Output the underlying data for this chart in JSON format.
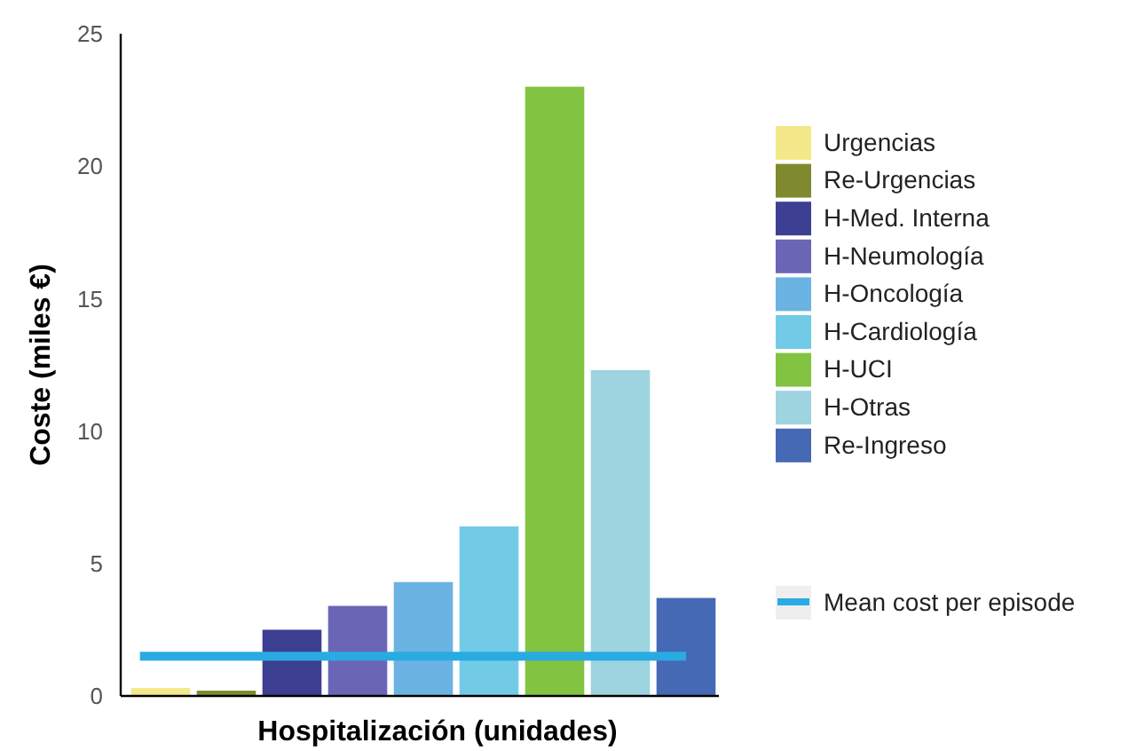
{
  "chart_data": {
    "type": "bar",
    "xlabel": "Hospitalización (unidades)",
    "ylabel": "Coste (miles €)",
    "categories": [
      null,
      null,
      null,
      null,
      null,
      null,
      null,
      null,
      null
    ],
    "stacked": true,
    "series": [
      {
        "name": "Urgencias",
        "color": "#f3e88a",
        "values": [
          0.3,
          null,
          null,
          null,
          null,
          null,
          null,
          null,
          null
        ]
      },
      {
        "name": "Re-Urgencias",
        "color": "#7f8a2e",
        "values": [
          null,
          0.2,
          null,
          null,
          null,
          null,
          null,
          null,
          null
        ]
      },
      {
        "name": "H-Med. Interna",
        "color": "#3d3f92",
        "values": [
          null,
          null,
          2.5,
          null,
          null,
          null,
          null,
          null,
          null
        ]
      },
      {
        "name": "H-Neumología",
        "color": "#6a66b5",
        "values": [
          null,
          null,
          null,
          3.4,
          null,
          null,
          null,
          null,
          null
        ]
      },
      {
        "name": "H-Oncología",
        "color": "#6ab3e2",
        "values": [
          null,
          null,
          null,
          null,
          4.3,
          null,
          null,
          null,
          null
        ]
      },
      {
        "name": "H-Cardiología",
        "color": "#72cbe6",
        "values": [
          null,
          null,
          null,
          null,
          null,
          6.4,
          null,
          null,
          null
        ]
      },
      {
        "name": "H-UCI",
        "color": "#82c341",
        "values": [
          null,
          null,
          null,
          null,
          null,
          null,
          23.0,
          null,
          null
        ]
      },
      {
        "name": "H-Otras",
        "color": "#9ed3e0",
        "values": [
          null,
          null,
          null,
          null,
          null,
          null,
          null,
          12.3,
          null
        ]
      },
      {
        "name": "Re-Ingreso",
        "color": "#4569b5",
        "values": [
          null,
          null,
          null,
          null,
          null,
          null,
          null,
          null,
          3.7
        ]
      }
    ],
    "ylim": [
      0,
      25
    ],
    "yticks": [
      0,
      5,
      10,
      15,
      20,
      25
    ],
    "ref_lines": [
      {
        "axis": "y",
        "value": 1.5,
        "label": "Mean cost per episode",
        "color": "#29abe2"
      }
    ],
    "tick_labels": "y",
    "legend": "right",
    "grid": false
  }
}
